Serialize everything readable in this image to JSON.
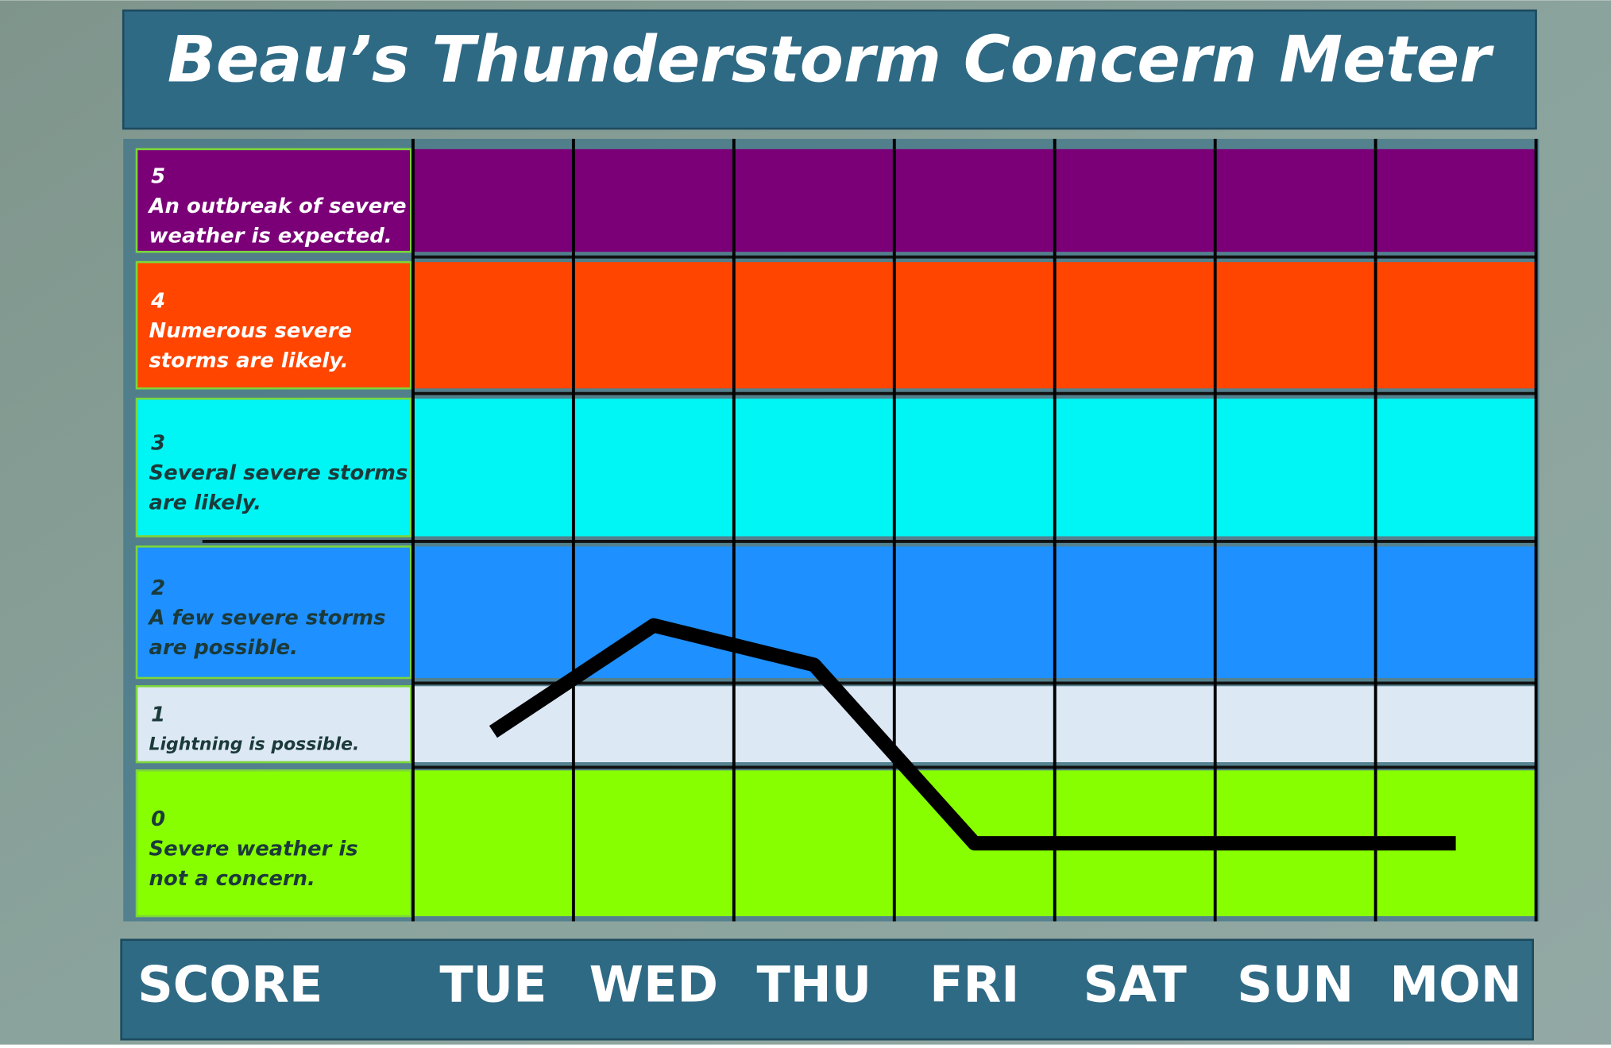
{
  "chart_data": {
    "type": "line",
    "title": "Beau’s Thunderstorm Concern Meter",
    "score_label": "SCORE",
    "categories": [
      "TUE",
      "WED",
      "THU",
      "FRI",
      "SAT",
      "SUN",
      "MON"
    ],
    "values": [
      1.4,
      2.4,
      2.1,
      0.5,
      0.5,
      0.5,
      0.5
    ],
    "color": "#000000",
    "levels": [
      {
        "score": 0,
        "description": [
          "Severe weather is",
          "not a concern."
        ],
        "color": "#88ff00",
        "text_color": "#1b3a3a"
      },
      {
        "score": 1,
        "description": [
          "Lightning is possible."
        ],
        "color": "#dde8f5",
        "text_color": "#1b3a3a"
      },
      {
        "score": 2,
        "description": [
          "A few severe storms",
          "are possible."
        ],
        "color": "#1e90ff",
        "text_color": "#1b3a3a"
      },
      {
        "score": 3,
        "description": [
          "Several severe storms",
          "are likely."
        ],
        "color": "#00f5f5",
        "text_color": "#1b3a3a"
      },
      {
        "score": 4,
        "description": [
          "Numerous severe",
          "storms are likely."
        ],
        "color": "#ff4500",
        "text_color": "#ffffff"
      },
      {
        "score": 5,
        "description": [
          "An outbreak of severe",
          "weather is expected."
        ],
        "color": "#7b0078",
        "text_color": "#ffffff"
      }
    ]
  }
}
